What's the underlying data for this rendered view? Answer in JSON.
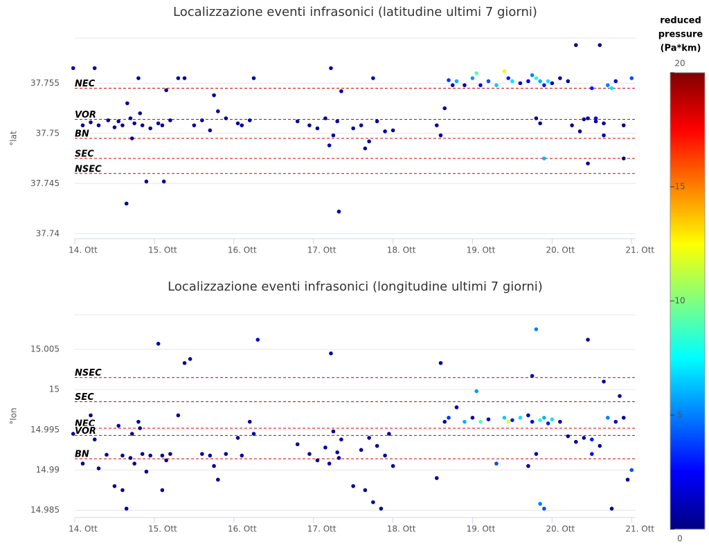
{
  "chart_data": [
    {
      "type": "scatter",
      "title": "Localizzazione eventi infrasonici (latitudine ultimi 7 giorni)",
      "y_label": "°lat",
      "xlim": [
        14,
        21.05
      ],
      "ylim": [
        37.7395,
        37.7595
      ],
      "xticks": [
        {
          "value": 14,
          "label": "14. Ott"
        },
        {
          "value": 15,
          "label": "15. Ott"
        },
        {
          "value": 16,
          "label": "16. Ott"
        },
        {
          "value": 17,
          "label": "17. Ott"
        },
        {
          "value": 18,
          "label": "18. Ott"
        },
        {
          "value": 19,
          "label": "19. Ott"
        },
        {
          "value": 20,
          "label": "20. Ott"
        },
        {
          "value": 21,
          "label": "21. Ott"
        }
      ],
      "yticks": [
        37.74,
        37.745,
        37.75,
        37.755
      ],
      "grid": true,
      "ref_lines": [
        {
          "label": "NEC",
          "value": 37.7545
        },
        {
          "label": "VOR",
          "value": 37.7514
        },
        {
          "label": "BN",
          "value": 37.7495
        },
        {
          "label": "SEC",
          "value": 37.7475
        },
        {
          "label": "NSEC",
          "value": 37.746
        }
      ],
      "x": [
        13.98,
        14.1,
        14.2,
        14.25,
        14.3,
        14.42,
        14.5,
        14.55,
        14.6,
        14.65,
        14.7,
        14.75,
        14.8,
        14.85,
        14.9,
        14.95,
        14.72,
        14.82,
        14.66,
        15.05,
        15.1,
        15.15,
        15.2,
        15.3,
        15.38,
        15.12,
        15.5,
        15.6,
        15.7,
        15.8,
        15.9,
        16.05,
        16.1,
        16.2,
        15.75,
        16.25,
        16.8,
        16.95,
        17.05,
        17.15,
        17.25,
        17.22,
        17.3,
        17.35,
        17.2,
        17.32,
        17.5,
        17.6,
        17.7,
        17.8,
        17.9,
        18.0,
        17.65,
        17.75,
        18.55,
        18.6,
        18.65,
        18.7,
        18.75,
        18.8,
        18.9,
        19.0,
        19.05,
        19.1,
        19.2,
        19.3,
        19.4,
        19.45,
        19.5,
        19.6,
        19.7,
        19.75,
        19.8,
        19.85,
        19.9,
        19.95,
        20.0,
        20.1,
        19.8,
        19.85,
        20.2,
        20.3,
        20.4,
        20.5,
        20.6,
        20.7,
        20.8,
        20.9,
        21.0,
        20.25,
        20.35,
        20.45,
        20.55,
        20.65,
        20.9,
        20.55,
        20.65,
        20.75,
        20.45,
        19.9
      ],
      "y": [
        37.7565,
        37.7508,
        37.7511,
        37.7565,
        37.7508,
        37.7513,
        37.7506,
        37.7512,
        37.7508,
        37.743,
        37.7515,
        37.751,
        37.7555,
        37.7508,
        37.7452,
        37.7505,
        37.7495,
        37.752,
        37.753,
        37.751,
        37.7508,
        37.7543,
        37.7513,
        37.7555,
        37.7555,
        37.7452,
        37.7508,
        37.7513,
        37.7503,
        37.7522,
        37.7515,
        37.751,
        37.7508,
        37.7513,
        37.7538,
        37.7555,
        37.7512,
        37.7508,
        37.7505,
        37.7515,
        37.7498,
        37.7565,
        37.7512,
        37.7542,
        37.7488,
        37.7422,
        37.7505,
        37.7508,
        37.7492,
        37.7512,
        37.7502,
        37.7503,
        37.7485,
        37.7555,
        37.7508,
        37.7498,
        37.7525,
        37.7553,
        37.7548,
        37.7552,
        37.7548,
        37.7555,
        37.756,
        37.7548,
        37.7552,
        37.7548,
        37.7562,
        37.7555,
        37.7552,
        37.755,
        37.7552,
        37.7558,
        37.7555,
        37.7552,
        37.7548,
        37.7552,
        37.755,
        37.7555,
        37.7515,
        37.751,
        37.7552,
        37.7588,
        37.7514,
        37.7545,
        37.7588,
        37.7548,
        37.7552,
        37.7508,
        37.7555,
        37.7508,
        37.7502,
        37.7515,
        37.7512,
        37.7498,
        37.7475,
        37.7515,
        37.751,
        37.7545,
        37.747,
        37.7475
      ],
      "values": [
        0.5,
        0.6,
        0.5,
        0.7,
        0.5,
        0.6,
        0.5,
        0.8,
        0.6,
        0.5,
        0.5,
        0.6,
        0.5,
        0.7,
        0.5,
        0.6,
        0.5,
        0.6,
        0.5,
        0.6,
        0.5,
        0.6,
        0.5,
        0.8,
        0.6,
        0.5,
        0.6,
        0.5,
        0.7,
        0.5,
        0.6,
        0.5,
        0.5,
        0.7,
        0.5,
        0.8,
        0.5,
        0.6,
        0.5,
        0.6,
        0.5,
        0.6,
        0.5,
        0.5,
        0.6,
        0.5,
        0.7,
        0.5,
        0.6,
        0.5,
        0.5,
        0.6,
        0.5,
        0.7,
        0.5,
        0.6,
        0.6,
        3.5,
        1.2,
        6.0,
        1.0,
        5.5,
        9.0,
        2.0,
        4.0,
        6.5,
        12.0,
        3.0,
        7.0,
        1.5,
        2.0,
        5.0,
        8.0,
        6.0,
        3.0,
        7.0,
        1.0,
        0.8,
        0.6,
        0.5,
        0.6,
        0.5,
        0.7,
        3.0,
        0.5,
        5.0,
        1.5,
        0.6,
        4.0,
        0.5,
        0.6,
        0.7,
        0.5,
        0.8,
        0.5,
        2.5,
        0.6,
        7.0,
        0.5,
        6.0
      ]
    },
    {
      "type": "scatter",
      "title": "Localizzazione eventi infrasonici (longitudine ultimi 7 giorni)",
      "y_label": "°lon",
      "xlim": [
        14,
        21.05
      ],
      "ylim": [
        14.9841,
        15.0093
      ],
      "xticks": [
        {
          "value": 14,
          "label": "14. Ott"
        },
        {
          "value": 15,
          "label": "15. Ott"
        },
        {
          "value": 16,
          "label": "16. Ott"
        },
        {
          "value": 17,
          "label": "17. Ott"
        },
        {
          "value": 18,
          "label": "18. Ott"
        },
        {
          "value": 19,
          "label": "19. Ott"
        },
        {
          "value": 20,
          "label": "20. Ott"
        },
        {
          "value": 21,
          "label": "21. Ott"
        }
      ],
      "yticks": [
        14.985,
        14.99,
        14.995,
        15,
        15.005
      ],
      "grid": true,
      "ref_lines": [
        {
          "label": "NSEC",
          "value": 15.0015
        },
        {
          "label": "SEC",
          "value": 14.9985
        },
        {
          "label": "NEC",
          "value": 14.9952
        },
        {
          "label": "VOR",
          "value": 14.9943
        },
        {
          "label": "BN",
          "value": 14.9914
        }
      ],
      "x": [
        13.98,
        14.1,
        14.2,
        14.25,
        14.3,
        14.4,
        14.5,
        14.55,
        14.6,
        14.65,
        14.7,
        14.75,
        14.8,
        14.85,
        14.9,
        14.95,
        14.72,
        14.82,
        14.6,
        15.05,
        15.1,
        15.15,
        15.2,
        15.3,
        15.38,
        15.1,
        15.45,
        15.6,
        15.7,
        15.8,
        15.9,
        16.05,
        16.1,
        16.2,
        15.75,
        16.25,
        16.3,
        16.8,
        16.95,
        17.05,
        17.15,
        17.22,
        17.25,
        17.3,
        17.35,
        17.2,
        17.32,
        17.5,
        17.6,
        17.7,
        17.8,
        17.9,
        18.0,
        17.65,
        17.75,
        17.85,
        17.95,
        18.55,
        18.6,
        18.65,
        18.7,
        18.8,
        18.9,
        19.0,
        19.05,
        19.1,
        19.2,
        19.3,
        19.4,
        19.45,
        19.5,
        19.6,
        19.7,
        19.75,
        19.8,
        19.85,
        19.9,
        19.95,
        20.0,
        20.1,
        19.75,
        19.8,
        19.85,
        19.9,
        20.2,
        20.3,
        20.4,
        20.5,
        20.6,
        20.7,
        20.8,
        20.9,
        21.0,
        20.45,
        20.65,
        20.75,
        20.85,
        20.95,
        20.5,
        19.7
      ],
      "y": [
        14.9945,
        14.9908,
        14.9968,
        14.9938,
        14.9902,
        14.9919,
        14.988,
        14.9955,
        14.9918,
        14.9852,
        14.9915,
        14.9908,
        14.996,
        14.992,
        14.9898,
        14.9918,
        14.9945,
        14.9952,
        14.9875,
        15.0057,
        14.9918,
        14.9912,
        14.992,
        14.9968,
        15.0033,
        14.9875,
        15.0038,
        14.992,
        14.9918,
        14.9888,
        14.992,
        14.994,
        14.9918,
        14.996,
        14.9905,
        14.9945,
        15.0062,
        14.9932,
        14.992,
        14.9912,
        14.9928,
        15.0045,
        14.9948,
        14.9922,
        14.9938,
        14.9908,
        14.9915,
        14.988,
        14.9925,
        14.994,
        14.993,
        14.9918,
        14.9905,
        14.9875,
        14.986,
        14.9852,
        14.9945,
        14.989,
        15.0033,
        14.996,
        14.9965,
        14.9978,
        14.996,
        14.9965,
        14.9998,
        14.996,
        14.9963,
        14.9908,
        14.9965,
        14.996,
        14.9962,
        14.9965,
        14.9968,
        14.996,
        15.0075,
        14.9962,
        14.9965,
        14.9958,
        14.9963,
        14.996,
        15.0017,
        14.992,
        14.9858,
        14.9852,
        14.9942,
        14.9935,
        14.994,
        14.9938,
        14.993,
        14.9965,
        14.996,
        14.9965,
        14.99,
        15.0062,
        15.001,
        14.9852,
        14.9992,
        14.9888,
        14.992,
        14.9905
      ],
      "values": [
        0.5,
        0.6,
        0.5,
        0.7,
        0.5,
        0.6,
        0.5,
        0.8,
        0.6,
        0.5,
        0.5,
        0.6,
        0.5,
        0.7,
        0.5,
        0.6,
        0.5,
        0.6,
        0.5,
        0.6,
        0.5,
        0.6,
        0.5,
        0.8,
        0.6,
        0.5,
        0.6,
        0.5,
        0.7,
        0.5,
        0.6,
        0.5,
        0.5,
        0.7,
        0.5,
        0.8,
        1.5,
        0.5,
        0.6,
        0.5,
        0.6,
        0.6,
        0.5,
        0.5,
        0.6,
        0.5,
        0.5,
        0.7,
        0.5,
        0.6,
        0.5,
        0.5,
        0.6,
        0.5,
        0.7,
        0.5,
        0.5,
        0.5,
        0.6,
        0.6,
        3.5,
        1.2,
        6.0,
        1.0,
        5.5,
        9.0,
        2.0,
        4.0,
        6.5,
        12.0,
        3.0,
        7.0,
        1.5,
        2.0,
        5.0,
        8.0,
        6.0,
        3.0,
        7.0,
        1.0,
        0.8,
        0.6,
        5.0,
        4.0,
        0.6,
        0.5,
        0.7,
        3.0,
        0.5,
        5.0,
        1.5,
        0.6,
        4.0,
        0.5,
        0.6,
        0.5,
        0.7,
        0.5,
        2.5,
        0.6
      ]
    },
    {
      "type": "colorbar",
      "title": [
        "reduced",
        "pressure",
        "(Pa*km)"
      ],
      "clim": [
        0,
        20
      ],
      "ticks": [
        0,
        5,
        10,
        15,
        20
      ],
      "colormap": "jet"
    }
  ]
}
